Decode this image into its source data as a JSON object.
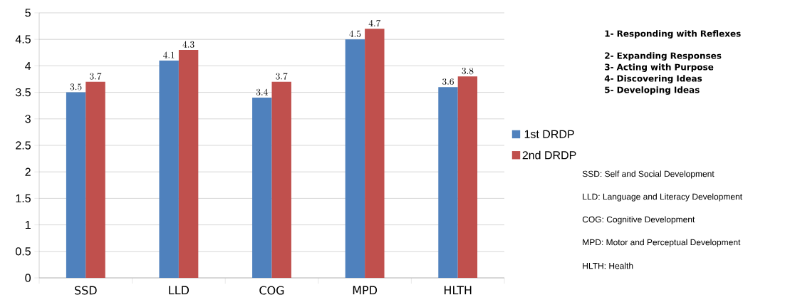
{
  "chart_data": {
    "type": "bar",
    "categories": [
      "SSD",
      "LLD",
      "COG",
      "MPD",
      "HLTH"
    ],
    "series": [
      {
        "name": "1st DRDP",
        "color": "#4f81bd",
        "values": [
          3.5,
          4.1,
          3.4,
          4.5,
          3.6
        ]
      },
      {
        "name": "2nd DRDP",
        "color": "#c0504d",
        "values": [
          3.7,
          4.3,
          3.7,
          4.7,
          3.8
        ]
      }
    ],
    "ylim": [
      0,
      5
    ],
    "yticks": [
      0,
      0.5,
      1,
      1.5,
      2,
      2.5,
      3,
      3.5,
      4,
      4.5,
      5
    ],
    "grid": "y",
    "legend": "right",
    "data_labels": true,
    "annotations": [
      "1- Responding with Reflexes",
      "2- Expanding Responses",
      "3- Acting with Purpose",
      "4- Discovering Ideas",
      "5- Developing Ideas",
      "SSD: Self and Social Development",
      "LLD: Language and Literacy Development",
      "COG: Cognitive Development",
      "MPD: Motor and Perceptual Development",
      "HLTH: Health"
    ]
  }
}
